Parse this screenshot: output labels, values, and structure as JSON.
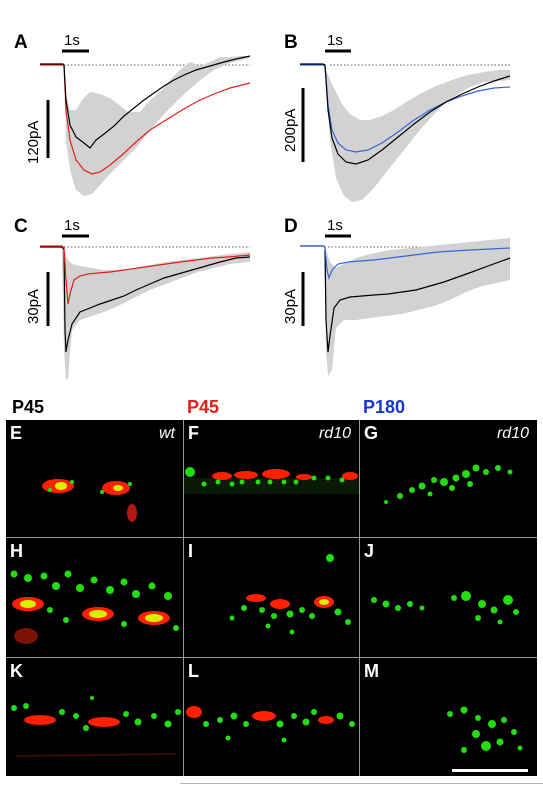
{
  "colors": {
    "wt": "#000000",
    "rd10_p45": "#e0201b",
    "rd10_p180": "#3b63d8",
    "sem_band": "#d2d2d2",
    "baseline": "#555555",
    "group_p45_wt": "#000000",
    "group_p45_rd10": "#e0201b",
    "group_p180_rd10": "#1a38c8",
    "stain_red": "#ff2000",
    "stain_green": "#22dd10",
    "stain_yellow": "#d8f000",
    "tile_divider": "#9a9a9a"
  },
  "traces": {
    "time_scale_label": "1s",
    "panels": [
      {
        "id": "A",
        "amp_label": "120pA"
      },
      {
        "id": "B",
        "amp_label": "200pA"
      },
      {
        "id": "C",
        "amp_label": "30pA"
      },
      {
        "id": "D",
        "amp_label": "30pA"
      }
    ]
  },
  "groups": [
    {
      "label": "P45"
    },
    {
      "label": "P45"
    },
    {
      "label": "P180"
    }
  ],
  "tiles": [
    {
      "letter": "E",
      "genotype": "wt"
    },
    {
      "letter": "F",
      "genotype": "rd10"
    },
    {
      "letter": "G",
      "genotype": "rd10"
    },
    {
      "letter": "H",
      "genotype": ""
    },
    {
      "letter": "I",
      "genotype": ""
    },
    {
      "letter": "J",
      "genotype": ""
    },
    {
      "letter": "K",
      "genotype": ""
    },
    {
      "letter": "L",
      "genotype": ""
    },
    {
      "letter": "M",
      "genotype": ""
    }
  ]
}
